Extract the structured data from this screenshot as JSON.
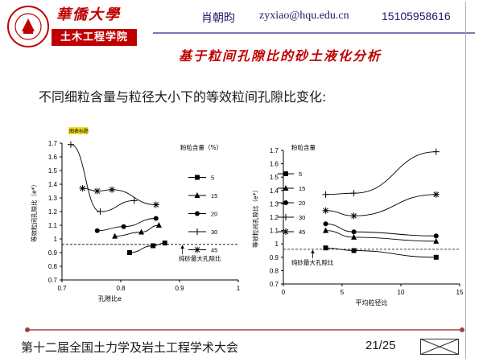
{
  "header": {
    "university_name": "華僑大學",
    "logo_text": "HUAQIAO UNIVERSITY",
    "college_name": "土木工程学院",
    "author": "肖朝昀",
    "email": "zyxiao@hqu.edu.cn",
    "phone": "15105958616",
    "title": "基于粒间孔隙比的砂土液化分析"
  },
  "subheading": "不同细粒含量与粒径大小下的等效粒间孔隙比变化:",
  "footer": {
    "conference": "第十二届全国土力学及岩土工程学术大会",
    "page": "21/25"
  },
  "colors": {
    "brand_red": "#c00000",
    "header_text": "#1a1a66",
    "footer_bar": "#a04040"
  },
  "chart_data": [
    {
      "type": "line",
      "corner_tag": "图表标题",
      "xlabel": "孔隙比e",
      "ylabel": "等效粒间孔隙比（e*）",
      "xlim": [
        0.7,
        1.0
      ],
      "ylim": [
        0.7,
        1.7
      ],
      "xticks": [
        0.7,
        0.8,
        0.9,
        1.0
      ],
      "xtick_labels": [
        "0.7",
        "0.8",
        "0.9",
        "1"
      ],
      "yticks": [
        0.7,
        0.8,
        0.9,
        1.0,
        1.1,
        1.2,
        1.3,
        1.4,
        1.5,
        1.6,
        1.7
      ],
      "ytick_labels": [
        "0.7",
        "0.8",
        "0.9",
        "1",
        "1.1",
        "1.2",
        "1.3",
        "1.4",
        "1.5",
        "1.6",
        "1.7"
      ],
      "legend_title": "粉粒含量（%）",
      "legend_position": "right",
      "reference_line": {
        "y": 0.96,
        "style": "dashed",
        "label": "纯砂最大孔隙比",
        "arrow_x": 0.905
      },
      "series": [
        {
          "name": "5",
          "marker": "square",
          "x": [
            0.815,
            0.855,
            0.875
          ],
          "y": [
            0.9,
            0.95,
            0.97
          ]
        },
        {
          "name": "15",
          "marker": "triangle",
          "x": [
            0.79,
            0.835,
            0.865
          ],
          "y": [
            1.02,
            1.05,
            1.1
          ]
        },
        {
          "name": "20",
          "marker": "circle",
          "x": [
            0.76,
            0.805,
            0.86
          ],
          "y": [
            1.06,
            1.09,
            1.15
          ]
        },
        {
          "name": "30",
          "marker": "plus",
          "x": [
            0.715,
            0.765,
            0.823
          ],
          "y": [
            1.69,
            1.2,
            1.28
          ]
        },
        {
          "name": "45",
          "marker": "star",
          "x": [
            0.735,
            0.76,
            0.785,
            0.86
          ],
          "y": [
            1.37,
            1.35,
            1.36,
            1.25
          ]
        }
      ]
    },
    {
      "type": "line",
      "xlabel": "平均粒径比",
      "ylabel": "等效粒间孔隙比（e*）",
      "xlim": [
        0,
        15
      ],
      "ylim": [
        0.7,
        1.7
      ],
      "xticks": [
        0,
        5,
        10,
        15
      ],
      "xtick_labels": [
        "0",
        "5",
        "10",
        "15"
      ],
      "yticks": [
        0.7,
        0.8,
        0.9,
        1.0,
        1.1,
        1.2,
        1.3,
        1.4,
        1.5,
        1.6,
        1.7
      ],
      "ytick_labels": [
        "0.7",
        "0.8",
        "0.9",
        "1",
        "1.1",
        "1.2",
        "1.3",
        "1.4",
        "1.5",
        "1.6",
        "1.7"
      ],
      "legend_title": "粉粒含量",
      "legend_position": "left",
      "reference_line": {
        "y": 0.96,
        "style": "dashed",
        "label": "纯砂最大孔隙比",
        "arrow_x": 2.5
      },
      "series": [
        {
          "name": "5",
          "marker": "square",
          "x": [
            3.6,
            6,
            13
          ],
          "y": [
            0.97,
            0.95,
            0.9
          ]
        },
        {
          "name": "15",
          "marker": "triangle",
          "x": [
            3.6,
            6,
            13
          ],
          "y": [
            1.1,
            1.05,
            1.02
          ]
        },
        {
          "name": "20",
          "marker": "circle",
          "x": [
            3.6,
            6,
            13
          ],
          "y": [
            1.15,
            1.09,
            1.06
          ]
        },
        {
          "name": "30",
          "marker": "plus",
          "x": [
            3.6,
            6,
            13
          ],
          "y": [
            1.37,
            1.38,
            1.69
          ]
        },
        {
          "name": "45",
          "marker": "star",
          "x": [
            3.6,
            6,
            13
          ],
          "y": [
            1.25,
            1.21,
            1.37
          ]
        }
      ]
    }
  ]
}
